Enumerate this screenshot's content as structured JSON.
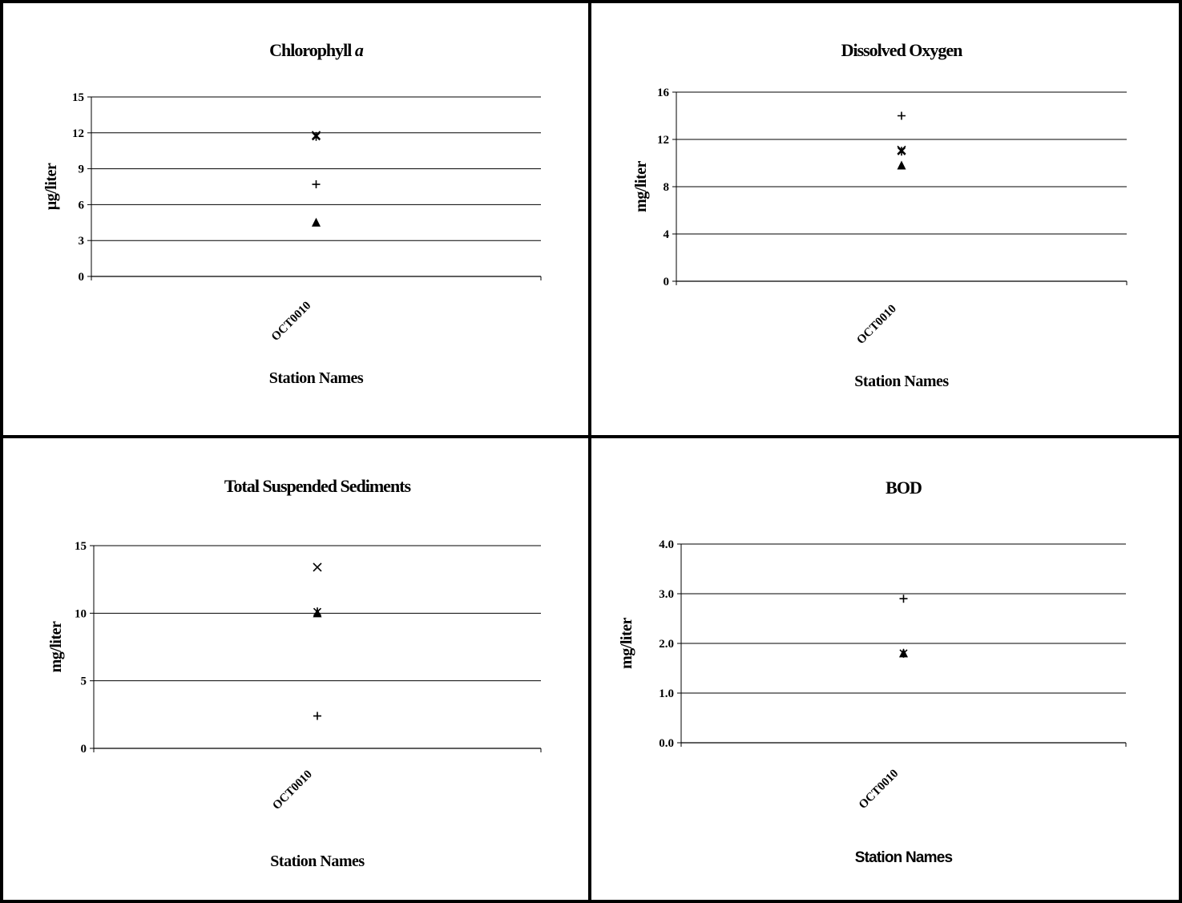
{
  "chart_data": [
    {
      "type": "scatter",
      "title": "Chlorophyll ",
      "title_italic": "a",
      "xlabel": "Station Names",
      "ylabel": "µg/liter",
      "categories": [
        "OCT0010"
      ],
      "ylim": [
        0,
        15
      ],
      "yticks": [
        0,
        3,
        6,
        9,
        12,
        15
      ],
      "yticklabels": [
        "0",
        "3",
        "6",
        "9",
        "12",
        "15"
      ],
      "grid": true,
      "series": [
        {
          "marker": "plus",
          "values": [
            7.7
          ]
        },
        {
          "marker": "triangle",
          "values": [
            4.5
          ]
        },
        {
          "marker": "x",
          "values": [
            11.8
          ]
        },
        {
          "marker": "asterisk",
          "values": [
            11.7
          ]
        }
      ]
    },
    {
      "type": "scatter",
      "title": "Dissolved Oxygen",
      "xlabel": "Station Names",
      "ylabel": "mg/liter",
      "categories": [
        "OCT0010"
      ],
      "ylim": [
        0,
        16
      ],
      "yticks": [
        0,
        4,
        8,
        12,
        16
      ],
      "yticklabels": [
        "0",
        "4",
        "8",
        "12",
        "16"
      ],
      "grid": true,
      "series": [
        {
          "marker": "plus",
          "values": [
            14.0
          ]
        },
        {
          "marker": "x",
          "values": [
            11.1
          ]
        },
        {
          "marker": "asterisk",
          "values": [
            11.0
          ]
        },
        {
          "marker": "triangle",
          "values": [
            9.8
          ]
        }
      ]
    },
    {
      "type": "scatter",
      "title": "Total Suspended Sediments",
      "xlabel": "Station Names",
      "ylabel": "mg/liter",
      "categories": [
        "OCT0010"
      ],
      "ylim": [
        0,
        15
      ],
      "yticks": [
        0,
        5,
        10,
        15
      ],
      "yticklabels": [
        "0",
        "5",
        "10",
        "15"
      ],
      "grid": true,
      "series": [
        {
          "marker": "x",
          "values": [
            13.4
          ]
        },
        {
          "marker": "triangle",
          "values": [
            10.0
          ]
        },
        {
          "marker": "asterisk",
          "values": [
            10.1
          ]
        },
        {
          "marker": "plus",
          "values": [
            2.4
          ]
        }
      ]
    },
    {
      "type": "scatter",
      "title": "BOD",
      "xlabel": "Station Names",
      "ylabel": "mg/liter",
      "categories": [
        "OCT0010"
      ],
      "ylim": [
        0,
        4
      ],
      "yticks": [
        0,
        1,
        2,
        3,
        4
      ],
      "yticklabels": [
        "0.0",
        "1.0",
        "2.0",
        "3.0",
        "4.0"
      ],
      "grid": true,
      "series": [
        {
          "marker": "plus",
          "values": [
            2.9
          ]
        },
        {
          "marker": "triangle",
          "values": [
            1.8
          ]
        },
        {
          "marker": "asterisk",
          "values": [
            1.8
          ]
        }
      ]
    }
  ]
}
